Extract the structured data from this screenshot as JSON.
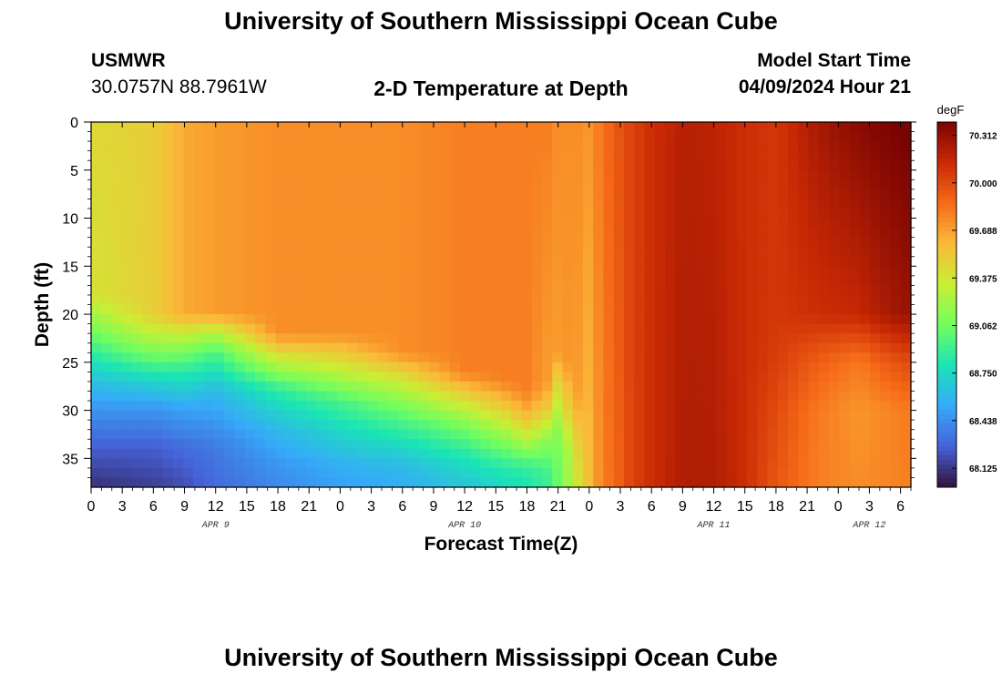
{
  "header": {
    "title": "University of Southern Mississippi Ocean Cube",
    "station_id": "USMWR",
    "station_coords": "30.0757N  88.7961W",
    "plot_title": "2-D Temperature at Depth",
    "start_label": "Model Start Time",
    "start_value": "04/09/2024 Hour 21"
  },
  "footer": {
    "title": "University of Southern Mississippi Ocean Cube"
  },
  "chart_data": {
    "type": "heatmap",
    "title": "2-D Temperature at Depth",
    "xlabel": "Forecast Time(Z)",
    "ylabel": "Depth (ft)",
    "colorbar_label": "degF",
    "xlim": [
      0,
      79
    ],
    "ylim": [
      0,
      38
    ],
    "x_tick_labels": [
      "0",
      "3",
      "6",
      "9",
      "12",
      "15",
      "18",
      "21",
      "0",
      "3",
      "6",
      "9",
      "12",
      "15",
      "18",
      "21",
      "0",
      "3",
      "6",
      "9",
      "12",
      "15",
      "18",
      "21",
      "0",
      "3",
      "6"
    ],
    "date_labels": [
      {
        "text": "APR 9",
        "hours": 12
      },
      {
        "text": "APR 10",
        "hours": 36
      },
      {
        "text": "APR 11",
        "hours": 60
      },
      {
        "text": "APR 12",
        "hours": 75
      }
    ],
    "y_ticks": [
      0,
      5,
      10,
      15,
      20,
      25,
      30,
      35
    ],
    "colorbar_ticks": [
      "70.312",
      "70.000",
      "69.688",
      "69.375",
      "69.062",
      "68.750",
      "68.438",
      "68.125"
    ],
    "value_range": [
      68.0,
      70.4
    ],
    "colormap": [
      "#30123b",
      "#4662d7",
      "#36aaf9",
      "#1ae4b6",
      "#72fe5e",
      "#c8ef34",
      "#faba39",
      "#f66b19",
      "#ca2a04",
      "#7a0403"
    ],
    "temperature_profiles": [
      {
        "hours": 0,
        "depths": [
          0,
          18,
          22,
          26,
          30,
          34,
          38
        ],
        "values": [
          69.45,
          69.4,
          69.05,
          68.7,
          68.45,
          68.25,
          68.1
        ]
      },
      {
        "hours": 6,
        "depths": [
          0,
          20,
          24,
          27,
          30,
          34,
          38
        ],
        "values": [
          69.5,
          69.5,
          69.1,
          68.72,
          68.45,
          68.25,
          68.15
        ]
      },
      {
        "hours": 9,
        "depths": [
          0,
          20,
          23,
          26,
          30,
          34,
          38
        ],
        "values": [
          69.65,
          69.65,
          69.2,
          68.85,
          68.5,
          68.3,
          68.2
        ]
      },
      {
        "hours": 12,
        "depths": [
          0,
          20,
          22,
          24,
          28,
          34,
          38
        ],
        "values": [
          69.7,
          69.7,
          69.25,
          68.95,
          68.6,
          68.35,
          68.3
        ]
      },
      {
        "hours": 18,
        "depths": [
          0,
          22,
          25,
          28,
          32,
          36,
          38
        ],
        "values": [
          69.75,
          69.75,
          69.3,
          68.85,
          68.6,
          68.45,
          68.42
        ]
      },
      {
        "hours": 24,
        "depths": [
          0,
          22,
          26,
          29,
          32,
          36,
          38
        ],
        "values": [
          69.75,
          69.75,
          69.3,
          68.95,
          68.75,
          68.55,
          68.5
        ]
      },
      {
        "hours": 30,
        "depths": [
          0,
          24,
          27,
          30,
          33,
          36,
          38
        ],
        "values": [
          69.75,
          69.75,
          69.35,
          69.05,
          68.8,
          68.6,
          68.55
        ]
      },
      {
        "hours": 36,
        "depths": [
          0,
          26,
          29,
          32,
          35,
          38
        ],
        "values": [
          69.8,
          69.8,
          69.4,
          69.05,
          68.8,
          68.65
        ]
      },
      {
        "hours": 40,
        "depths": [
          0,
          27,
          30,
          33,
          36,
          38
        ],
        "values": [
          69.8,
          69.8,
          69.5,
          69.15,
          68.85,
          68.75
        ]
      },
      {
        "hours": 42,
        "depths": [
          0,
          28,
          31,
          34,
          36,
          38
        ],
        "values": [
          69.8,
          69.8,
          69.55,
          69.15,
          68.88,
          68.8
        ]
      },
      {
        "hours": 44,
        "depths": [
          0,
          27,
          30,
          33,
          36,
          38
        ],
        "values": [
          69.8,
          69.7,
          69.5,
          69.15,
          68.95,
          68.9
        ]
      },
      {
        "hours": 45,
        "depths": [
          0,
          24,
          28,
          32,
          36,
          38
        ],
        "values": [
          69.75,
          69.7,
          69.4,
          69.15,
          69.05,
          69.05
        ]
      },
      {
        "hours": 46,
        "depths": [
          0,
          25,
          30,
          34,
          38
        ],
        "values": [
          69.75,
          69.72,
          69.5,
          69.25,
          69.2
        ]
      },
      {
        "hours": 47,
        "depths": [
          0,
          28,
          34,
          38
        ],
        "values": [
          69.75,
          69.7,
          69.5,
          69.4
        ]
      },
      {
        "hours": 48,
        "depths": [
          0,
          38
        ],
        "values": [
          69.72,
          69.58
        ]
      },
      {
        "hours": 49,
        "depths": [
          0,
          38
        ],
        "values": [
          69.82,
          69.75
        ]
      },
      {
        "hours": 50,
        "depths": [
          0,
          38
        ],
        "values": [
          69.9,
          69.85
        ]
      },
      {
        "hours": 51,
        "depths": [
          0,
          38
        ],
        "values": [
          69.97,
          69.92
        ]
      },
      {
        "hours": 52,
        "depths": [
          0,
          38
        ],
        "values": [
          70.03,
          70.02
        ]
      },
      {
        "hours": 54,
        "depths": [
          0,
          38
        ],
        "values": [
          70.12,
          70.12
        ]
      },
      {
        "hours": 57,
        "depths": [
          0,
          38
        ],
        "values": [
          70.2,
          70.22
        ]
      },
      {
        "hours": 60,
        "depths": [
          0,
          38
        ],
        "values": [
          70.18,
          70.22
        ]
      },
      {
        "hours": 63,
        "depths": [
          0,
          38
        ],
        "values": [
          70.12,
          70.12
        ]
      },
      {
        "hours": 66,
        "depths": [
          0,
          20,
          25,
          30,
          38
        ],
        "values": [
          70.08,
          70.08,
          70.05,
          70.0,
          69.95
        ]
      },
      {
        "hours": 70,
        "depths": [
          0,
          20,
          25,
          30,
          38
        ],
        "values": [
          70.25,
          70.12,
          69.92,
          69.82,
          69.8
        ]
      },
      {
        "hours": 74,
        "depths": [
          0,
          20,
          25,
          30,
          38
        ],
        "values": [
          70.35,
          70.15,
          69.82,
          69.72,
          69.75
        ]
      },
      {
        "hours": 77,
        "depths": [
          0,
          20,
          25,
          30,
          38
        ],
        "values": [
          70.4,
          70.25,
          69.95,
          69.78,
          69.78
        ]
      },
      {
        "hours": 79,
        "depths": [
          0,
          20,
          25,
          30,
          38
        ],
        "values": [
          70.42,
          70.3,
          70.0,
          69.82,
          69.8
        ]
      }
    ]
  }
}
